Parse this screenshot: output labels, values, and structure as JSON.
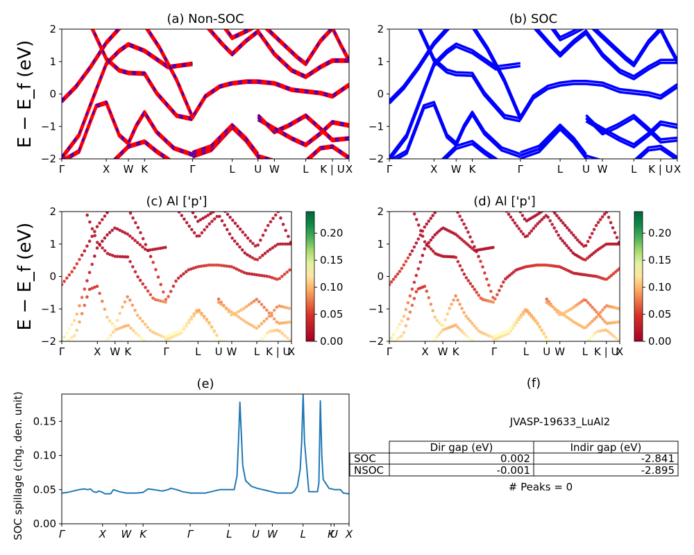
{
  "figure_id": "JVASP-19633_LuAl2",
  "chart_data": [
    {
      "id": "a",
      "type": "line",
      "title": "(a) Non-SOC",
      "ylabel": "E − E_f (eV)",
      "ylim": [
        -2,
        2
      ],
      "yticks": [
        -2,
        -1,
        0,
        1,
        2
      ],
      "xticks": [
        "Γ",
        "X",
        "W",
        "K",
        "Γ",
        "L",
        "U",
        "W",
        "L",
        "K | U",
        "X"
      ],
      "xtick_pos": [
        0,
        0.155,
        0.232,
        0.288,
        0.455,
        0.593,
        0.683,
        0.74,
        0.849,
        0.942,
        1.0
      ],
      "series_colors": [
        "#ff0000",
        "#0000ff"
      ],
      "bands": [
        [
          [
            0,
            -0.25
          ],
          [
            0.05,
            0.2
          ],
          [
            0.1,
            0.8
          ],
          [
            0.155,
            1.55
          ],
          [
            0.232,
            2.3
          ]
        ],
        [
          [
            0,
            -2.0
          ],
          [
            0.06,
            -1.3
          ],
          [
            0.12,
            0.1
          ],
          [
            0.155,
            0.9
          ],
          [
            0.2,
            1.3
          ],
          [
            0.232,
            1.5
          ],
          [
            0.288,
            1.3
          ],
          [
            0.37,
            0.8
          ],
          [
            0.455,
            0.9
          ]
        ],
        [
          [
            0,
            -2.1
          ],
          [
            0.06,
            -1.8
          ],
          [
            0.12,
            -0.4
          ],
          [
            0.155,
            -0.3
          ],
          [
            0.2,
            -1.3
          ],
          [
            0.232,
            -1.55
          ],
          [
            0.26,
            -1.0
          ],
          [
            0.288,
            -0.6
          ],
          [
            0.33,
            -1.2
          ],
          [
            0.39,
            -1.7
          ],
          [
            0.455,
            -1.9
          ]
        ],
        [
          [
            0.1,
            2.1
          ],
          [
            0.155,
            1.05
          ],
          [
            0.2,
            0.7
          ],
          [
            0.232,
            0.62
          ],
          [
            0.288,
            0.6
          ],
          [
            0.33,
            0.0
          ],
          [
            0.4,
            -0.7
          ],
          [
            0.455,
            -0.8
          ]
        ],
        [
          [
            0.18,
            -2.1
          ],
          [
            0.232,
            -1.65
          ],
          [
            0.288,
            -1.5
          ],
          [
            0.33,
            -1.8
          ],
          [
            0.38,
            -2.1
          ]
        ],
        [
          [
            0.288,
            2.1
          ],
          [
            0.34,
            1.4
          ],
          [
            0.4,
            0.4
          ],
          [
            0.455,
            -0.75
          ],
          [
            0.5,
            -0.1
          ],
          [
            0.55,
            0.2
          ],
          [
            0.593,
            0.3
          ],
          [
            0.64,
            0.35
          ],
          [
            0.683,
            0.35
          ],
          [
            0.74,
            0.3
          ],
          [
            0.8,
            0.1
          ],
          [
            0.849,
            0.05
          ],
          [
            0.9,
            0.0
          ],
          [
            0.942,
            -0.1
          ],
          [
            1.0,
            0.25
          ]
        ],
        [
          [
            0.455,
            -1.95
          ],
          [
            0.52,
            -1.75
          ],
          [
            0.593,
            -1.05
          ],
          [
            0.64,
            -1.45
          ],
          [
            0.683,
            -1.95
          ],
          [
            0.74,
            -2.1
          ]
        ],
        [
          [
            0.455,
            -1.85
          ],
          [
            0.52,
            -1.65
          ],
          [
            0.593,
            -1.0
          ],
          [
            0.64,
            -1.4
          ],
          [
            0.683,
            -1.9
          ]
        ],
        [
          [
            0.683,
            -0.7
          ],
          [
            0.74,
            -1.2
          ],
          [
            0.79,
            -1.0
          ],
          [
            0.849,
            -0.7
          ],
          [
            0.9,
            -1.1
          ],
          [
            0.942,
            -1.45
          ],
          [
            1.0,
            -1.4
          ]
        ],
        [
          [
            0.683,
            -0.8
          ],
          [
            0.74,
            -1.1
          ],
          [
            0.8,
            -1.4
          ],
          [
            0.849,
            -1.6
          ],
          [
            0.9,
            -1.25
          ],
          [
            0.942,
            -0.9
          ],
          [
            1.0,
            -1.0
          ]
        ],
        [
          [
            0.5,
            2.1
          ],
          [
            0.56,
            1.5
          ],
          [
            0.593,
            1.2
          ],
          [
            0.64,
            1.6
          ],
          [
            0.683,
            1.9
          ],
          [
            0.74,
            1.2
          ],
          [
            0.8,
            0.7
          ],
          [
            0.849,
            0.5
          ],
          [
            0.9,
            0.8
          ],
          [
            0.942,
            1.0
          ],
          [
            1.0,
            1.0
          ]
        ],
        [
          [
            0.7,
            2.1
          ],
          [
            0.76,
            1.6
          ],
          [
            0.82,
            1.1
          ],
          [
            0.849,
            0.9
          ],
          [
            0.9,
            1.6
          ],
          [
            0.942,
            2.0
          ],
          [
            0.97,
            1.5
          ],
          [
            1.0,
            1.0
          ]
        ],
        [
          [
            0.85,
            -2.1
          ],
          [
            0.9,
            -1.7
          ],
          [
            0.942,
            -1.65
          ],
          [
            1.0,
            -2.0
          ]
        ],
        [
          [
            0.56,
            2.1
          ],
          [
            0.593,
            1.7
          ],
          [
            0.64,
            1.9
          ],
          [
            0.683,
            2.1
          ]
        ]
      ]
    },
    {
      "id": "b",
      "type": "line",
      "title": "(b) SOC",
      "ylim": [
        -2,
        2
      ],
      "yticks": [
        -2,
        -1,
        0,
        1,
        2
      ],
      "xticks": [
        "Γ",
        "X",
        "W",
        "K",
        "Γ",
        "L",
        "U",
        "W",
        "L",
        "K | U",
        "X"
      ],
      "xtick_pos": [
        0,
        0.155,
        0.232,
        0.288,
        0.455,
        0.593,
        0.683,
        0.74,
        0.849,
        0.942,
        1.0
      ],
      "series_colors": [
        "#0000ff"
      ]
    },
    {
      "id": "c",
      "type": "scatter",
      "title": "(c)  Al ['p']",
      "ylabel": "E − E_f (eV)",
      "ylim": [
        -2,
        2
      ],
      "yticks": [
        -2,
        -1,
        0,
        1,
        2
      ],
      "xticks": [
        "Γ",
        "X",
        "W",
        "K",
        "Γ",
        "L",
        "U",
        "W",
        "L",
        "K | U",
        "X"
      ],
      "xtick_pos": [
        0,
        0.155,
        0.232,
        0.288,
        0.455,
        0.593,
        0.683,
        0.74,
        0.849,
        0.942,
        1.0
      ],
      "colorbar": {
        "min": 0.0,
        "max": 0.24,
        "ticks": [
          "0.00",
          "0.05",
          "0.10",
          "0.15",
          "0.20"
        ],
        "tick_values": [
          0,
          0.05,
          0.1,
          0.15,
          0.2
        ],
        "colormap": "RdYlGn"
      }
    },
    {
      "id": "d",
      "type": "scatter",
      "title": "(d) Al ['p']",
      "ylim": [
        -2,
        2
      ],
      "yticks": [
        -2,
        -1,
        0,
        1,
        2
      ],
      "xticks": [
        "Γ",
        "X",
        "W",
        "K",
        "Γ",
        "L",
        "U",
        "W",
        "L",
        "K | U",
        "X"
      ],
      "xtick_pos": [
        0,
        0.155,
        0.232,
        0.288,
        0.455,
        0.593,
        0.683,
        0.74,
        0.849,
        0.942,
        1.0
      ],
      "colorbar": {
        "min": 0.0,
        "max": 0.24,
        "ticks": [
          "0.00",
          "0.05",
          "0.10",
          "0.15",
          "0.20"
        ],
        "tick_values": [
          0,
          0.05,
          0.1,
          0.15,
          0.2
        ],
        "colormap": "RdYlGn"
      }
    },
    {
      "id": "e",
      "type": "line",
      "title": "(e)",
      "ylabel": "SOC spillage (chg. den. unit)",
      "ylim": [
        0,
        0.19
      ],
      "yticks": [
        "0.00",
        "0.05",
        "0.10",
        "0.15"
      ],
      "ytick_values": [
        0,
        0.05,
        0.1,
        0.15
      ],
      "xticks": [
        "Γ",
        "X",
        "W",
        "K",
        "Γ",
        "L",
        "U",
        "W",
        "L",
        "K",
        "U",
        "X"
      ],
      "xtick_pos": [
        0,
        0.142,
        0.224,
        0.283,
        0.447,
        0.583,
        0.675,
        0.733,
        0.84,
        0.937,
        0.948,
        1.0
      ],
      "series_color": "#1f77b4",
      "x": [
        0,
        0.02,
        0.04,
        0.06,
        0.08,
        0.09,
        0.1,
        0.11,
        0.12,
        0.13,
        0.142,
        0.15,
        0.16,
        0.17,
        0.18,
        0.2,
        0.224,
        0.26,
        0.283,
        0.3,
        0.32,
        0.35,
        0.37,
        0.38,
        0.4,
        0.42,
        0.447,
        0.5,
        0.55,
        0.57,
        0.585,
        0.6,
        0.61,
        0.615,
        0.62,
        0.63,
        0.64,
        0.66,
        0.68,
        0.7,
        0.75,
        0.78,
        0.8,
        0.81,
        0.82,
        0.83,
        0.835,
        0.84,
        0.845,
        0.86,
        0.87,
        0.88,
        0.89,
        0.895,
        0.9,
        0.905,
        0.91,
        0.93,
        0.95,
        0.97,
        0.98,
        1.0
      ],
      "y": [
        0.045,
        0.046,
        0.048,
        0.05,
        0.051,
        0.05,
        0.051,
        0.047,
        0.046,
        0.048,
        0.046,
        0.044,
        0.044,
        0.044,
        0.05,
        0.047,
        0.045,
        0.045,
        0.046,
        0.051,
        0.05,
        0.048,
        0.05,
        0.052,
        0.05,
        0.047,
        0.045,
        0.045,
        0.05,
        0.05,
        0.05,
        0.05,
        0.07,
        0.12,
        0.178,
        0.085,
        0.063,
        0.055,
        0.052,
        0.05,
        0.045,
        0.045,
        0.045,
        0.048,
        0.055,
        0.08,
        0.12,
        0.19,
        0.12,
        0.047,
        0.047,
        0.047,
        0.047,
        0.06,
        0.18,
        0.1,
        0.065,
        0.052,
        0.05,
        0.05,
        0.045,
        0.044
      ]
    }
  ],
  "panel_f": {
    "title": "(f)",
    "material": "JVASP-19633_LuAl2",
    "table": {
      "headers": [
        "",
        "Dir gap (eV)",
        "Indir gap (eV)"
      ],
      "rows": [
        {
          "label": "SOC",
          "dir": "0.002",
          "indir": "-2.841"
        },
        {
          "label": "NSOC",
          "dir": "-0.001",
          "indir": "-2.895"
        }
      ]
    },
    "peaks": "# Peaks = 0"
  }
}
